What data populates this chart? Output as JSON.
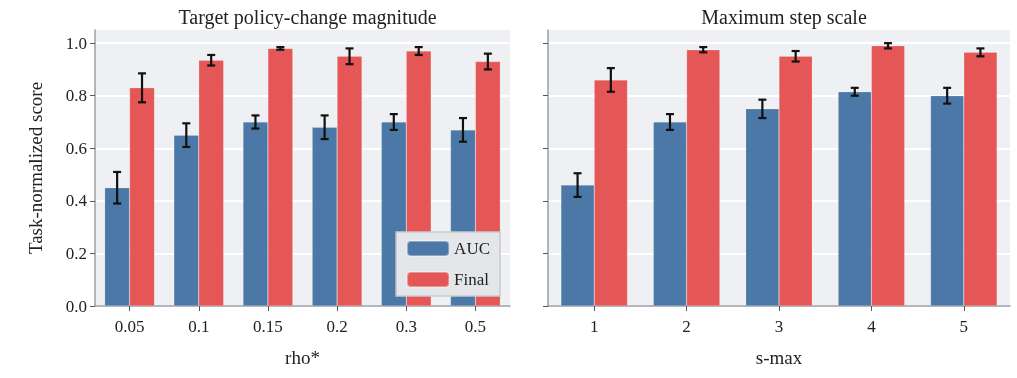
{
  "chart_data": [
    {
      "type": "bar",
      "title": "Target policy-change magnitude",
      "xlabel": "rho*",
      "ylabel": "Task-normalized score",
      "categories": [
        "0.05",
        "0.1",
        "0.15",
        "0.2",
        "0.3",
        "0.5"
      ],
      "series": [
        {
          "name": "AUC",
          "color": "#4c78a8",
          "values": [
            0.45,
            0.65,
            0.7,
            0.68,
            0.7,
            0.67
          ],
          "errors": [
            0.06,
            0.045,
            0.025,
            0.045,
            0.03,
            0.045
          ]
        },
        {
          "name": "Final",
          "color": "#e45756",
          "values": [
            0.83,
            0.935,
            0.98,
            0.95,
            0.97,
            0.93
          ],
          "errors": [
            0.055,
            0.02,
            0.005,
            0.03,
            0.015,
            0.03
          ]
        }
      ],
      "ylim": [
        0,
        1.05
      ],
      "yticks": [
        {
          "value": 0,
          "label": "0.0"
        },
        0.2,
        0.4,
        0.6,
        0.8,
        {
          "value": 1,
          "label": "1.0"
        }
      ],
      "grid": "y",
      "legend": "bottom right"
    },
    {
      "type": "bar",
      "title": "Maximum step scale",
      "xlabel": "s-max",
      "categories": [
        "1",
        "2",
        "3",
        "4",
        "5"
      ],
      "series": [
        {
          "color": "#4c78a8",
          "values": [
            0.46,
            0.7,
            0.75,
            0.815,
            0.8
          ],
          "errors": [
            0.045,
            0.03,
            0.035,
            0.015,
            0.03
          ]
        },
        {
          "color": "#e45756",
          "values": [
            0.86,
            0.975,
            0.95,
            0.99,
            0.965
          ],
          "errors": [
            0.045,
            0.01,
            0.02,
            0.01,
            0.015
          ]
        }
      ],
      "ylim": [
        0,
        1.05
      ],
      "yticks": [
        0,
        0.2,
        0.4,
        0.6,
        0.8,
        1
      ],
      "grid": "y",
      "legend": false,
      "tick_labels": "x"
    }
  ]
}
